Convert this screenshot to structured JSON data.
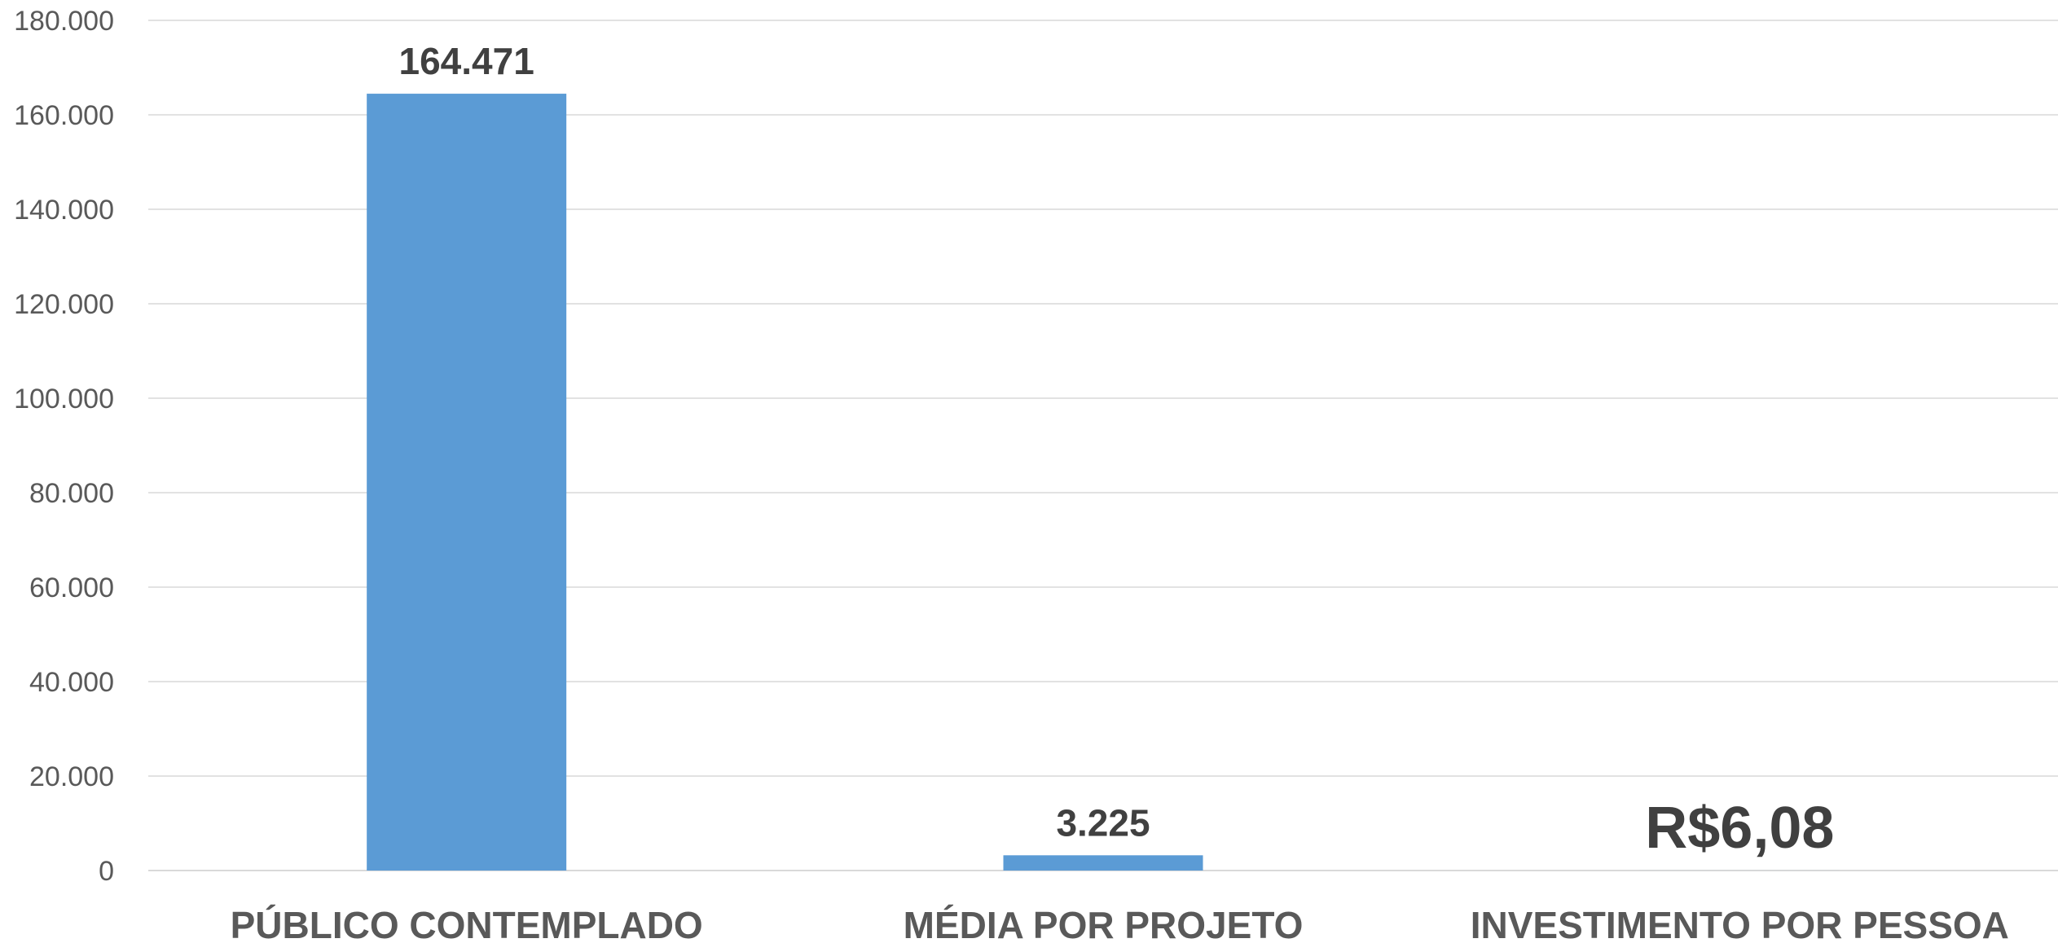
{
  "chart_data": {
    "type": "bar",
    "title": "",
    "xlabel": "",
    "ylabel": "",
    "categories": [
      "PÚBLICO CONTEMPLADO",
      "MÉDIA POR PROJETO",
      "INVESTIMENTO POR PESSOA"
    ],
    "values": [
      164471,
      3225,
      6.08
    ],
    "data_labels": [
      "164.471",
      "3.225",
      "R$6,08"
    ],
    "ylim": [
      0,
      180000
    ],
    "yticks": [
      0,
      20000,
      40000,
      60000,
      80000,
      100000,
      120000,
      140000,
      160000,
      180000
    ],
    "ytick_labels": [
      "0",
      "20.000",
      "40.000",
      "60.000",
      "80.000",
      "100.000",
      "120.000",
      "140.000",
      "160.000",
      "180.000"
    ],
    "grid": true,
    "legend": "none",
    "bar_color": "#5B9BD5",
    "grid_color": "#D9D9D9",
    "text_color": "#595959",
    "label_color": "#404040"
  }
}
